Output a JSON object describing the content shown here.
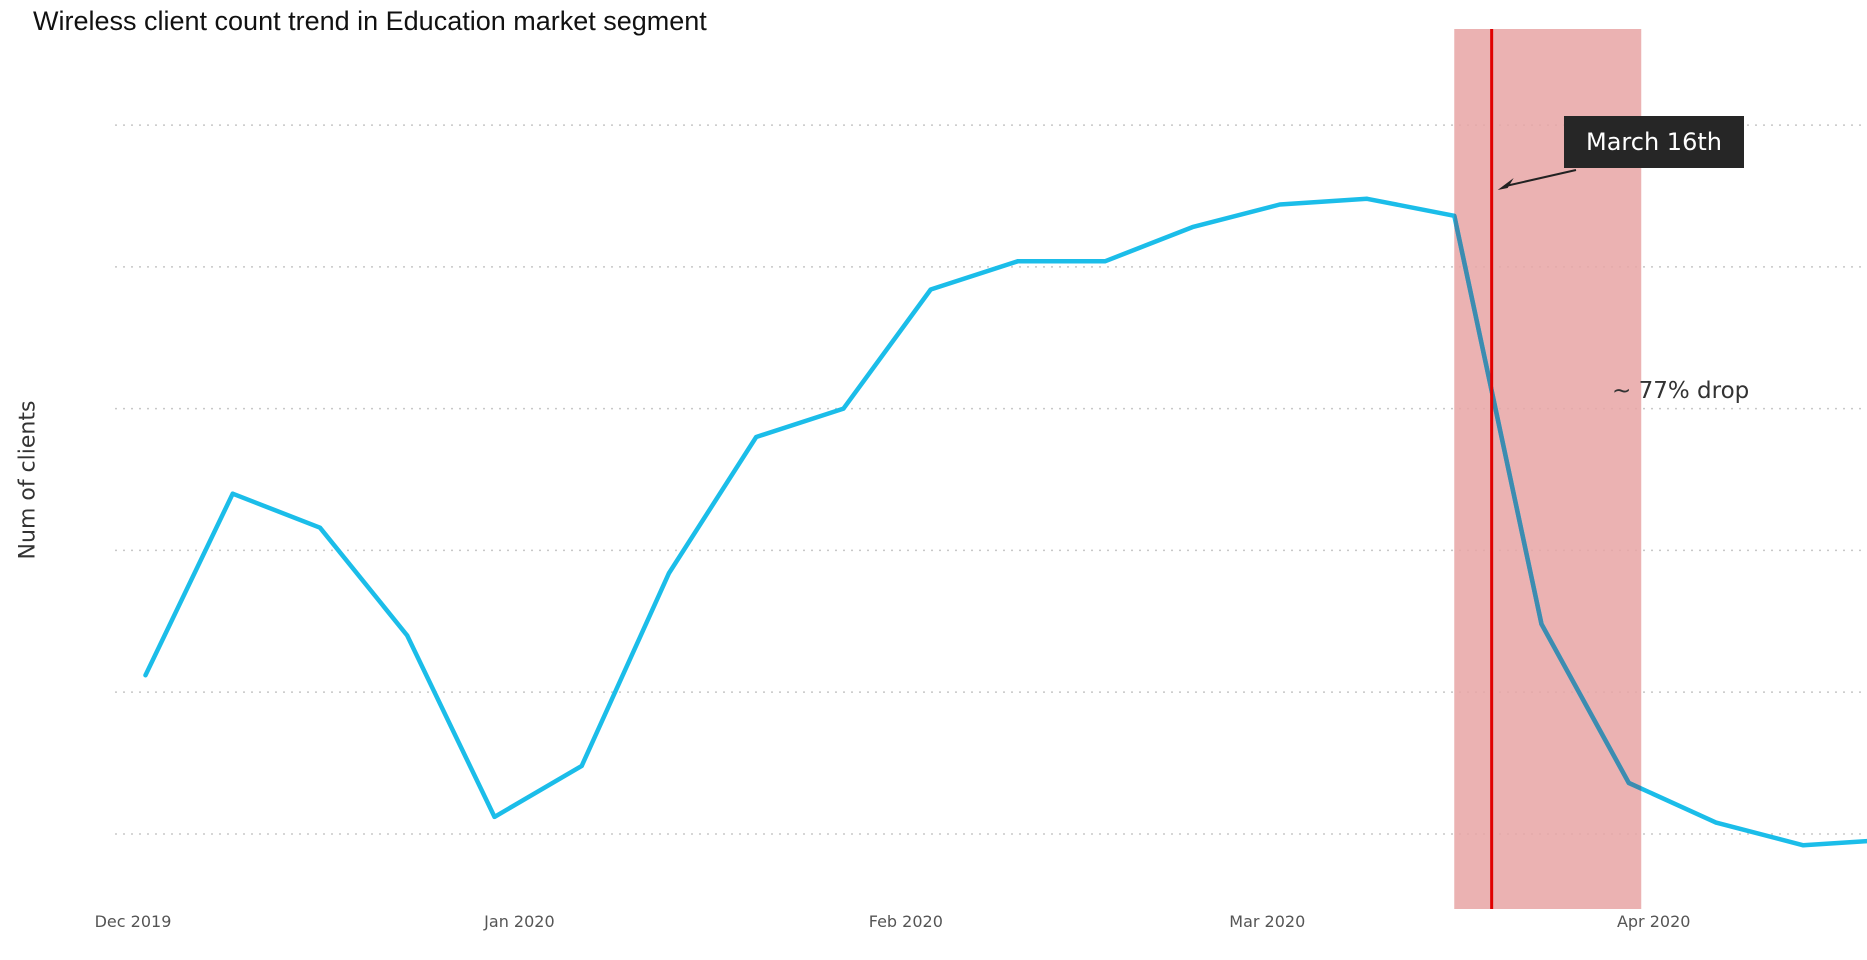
{
  "chart_data": {
    "type": "line",
    "title": "Wireless client count trend in Education market segment",
    "xlabel": "",
    "ylabel": "Num of clients",
    "x_ticks": [
      "Dec 2019",
      "Jan 2020",
      "Feb 2020",
      "Mar 2020",
      "Apr 2020"
    ],
    "x_tick_dates": [
      "2019-12-01",
      "2020-01-01",
      "2020-02-01",
      "2020-03-01",
      "2020-04-01"
    ],
    "x": [
      "2019-12-02",
      "2019-12-09",
      "2019-12-16",
      "2019-12-23",
      "2019-12-30",
      "2020-01-06",
      "2020-01-13",
      "2020-01-20",
      "2020-01-27",
      "2020-02-03",
      "2020-02-10",
      "2020-02-17",
      "2020-02-24",
      "2020-03-02",
      "2020-03-09",
      "2020-03-16",
      "2020-03-23",
      "2020-03-30",
      "2020-04-06",
      "2020-04-13",
      "2020-04-20"
    ],
    "values": [
      28,
      60,
      54,
      35,
      3,
      12,
      46,
      70,
      75,
      96,
      101,
      101,
      107,
      111,
      112,
      109,
      37,
      9,
      2,
      -2,
      -1
    ],
    "y_hidden": true,
    "ylim": [
      -12,
      140
    ],
    "xlim": [
      "2019-12-01",
      "2020-04-21"
    ],
    "grid": true,
    "gridlines": [
      0,
      25,
      50,
      75,
      100,
      125
    ],
    "line_color": "#1bbde9",
    "highlight_band": {
      "start": "2020-03-16",
      "end": "2020-03-31",
      "color": "#e8a4a4"
    },
    "marker_line": {
      "date": "2020-03-19",
      "color": "#e00000"
    },
    "annotations": {
      "callout": "March 16th",
      "drop": "~ 77% drop"
    }
  }
}
